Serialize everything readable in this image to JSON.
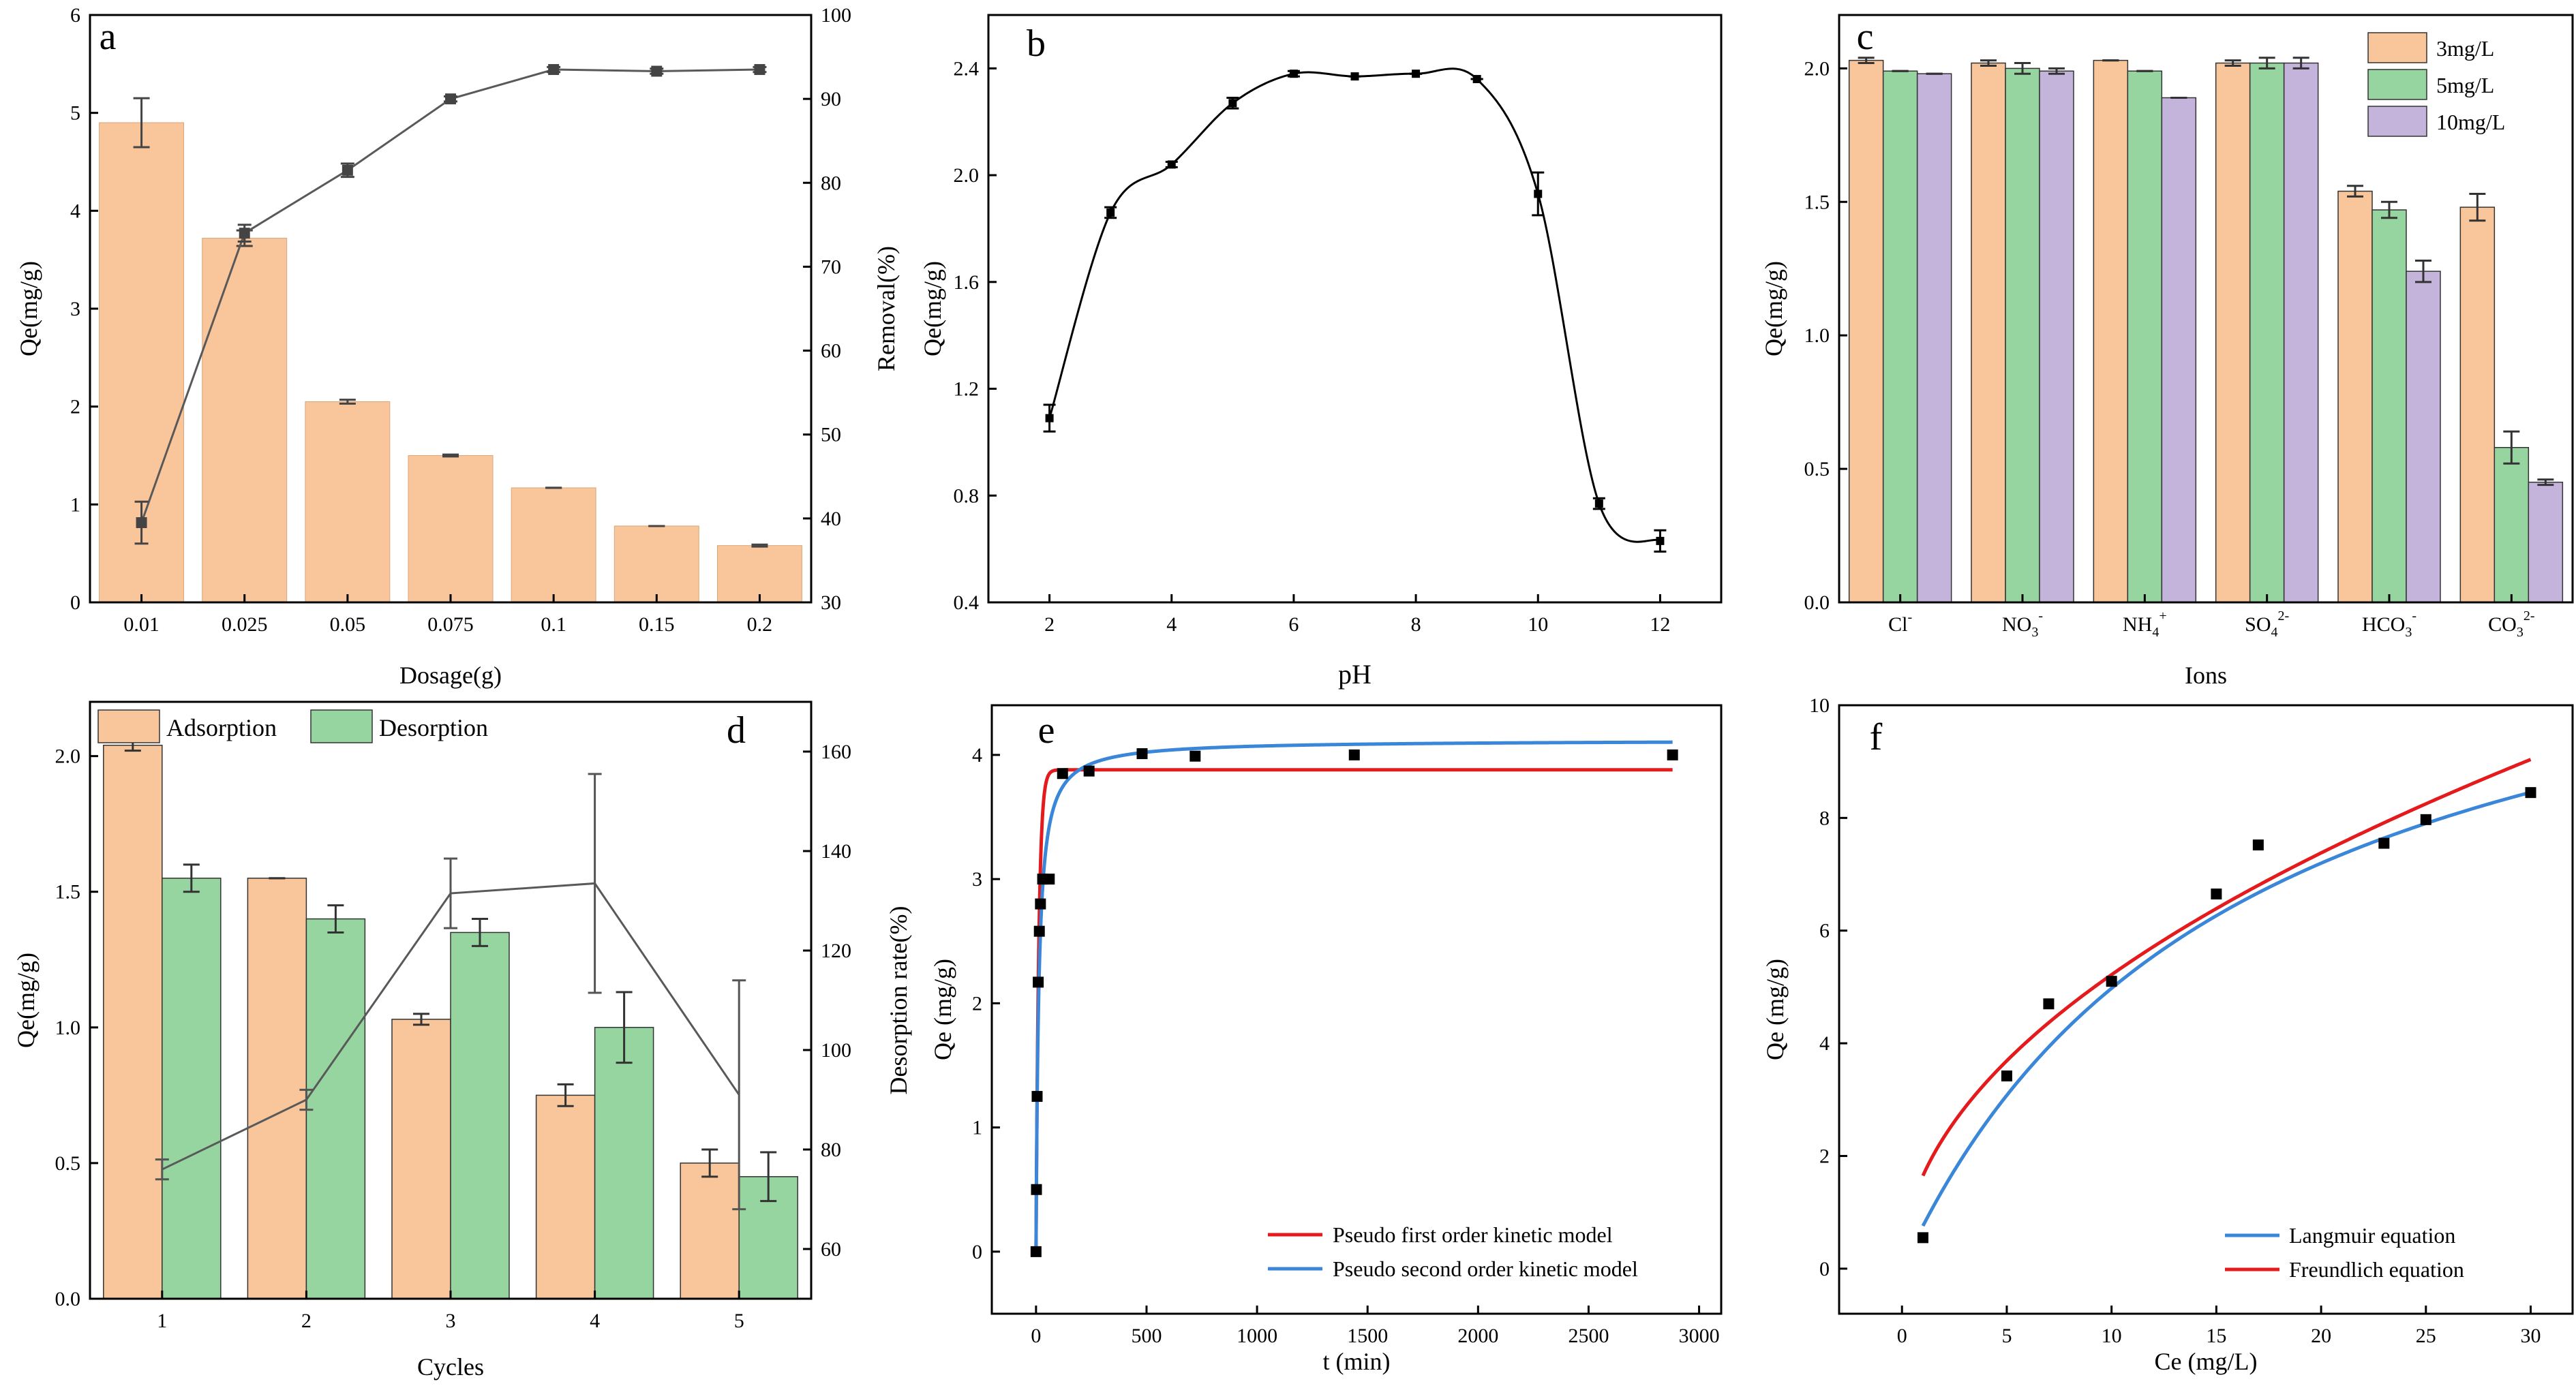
{
  "colors": {
    "orange": "#F9C59A",
    "green": "#96D4A0",
    "purple": "#C4B4DB",
    "line_gray": "#595959",
    "red": "#E41A1C",
    "blue": "#3A86D8",
    "black": "#000000"
  },
  "chart_data": [
    {
      "id": "a",
      "panel_label": "a",
      "type": "bar",
      "xlabel": "Dosage(g)",
      "ylabel": "Qe(mg/g)",
      "y2label": "Removal(%)",
      "categories": [
        "0.01",
        "0.025",
        "0.05",
        "0.075",
        "0.1",
        "0.15",
        "0.2"
      ],
      "ylim": [
        0,
        6
      ],
      "yticks": [
        "0",
        "1",
        "2",
        "3",
        "4",
        "5",
        "6"
      ],
      "y2lim": [
        30,
        100
      ],
      "y2ticks": [
        "30",
        "40",
        "50",
        "60",
        "70",
        "80",
        "90",
        "100"
      ],
      "series": [
        {
          "name": "Qe",
          "axis": "left",
          "kind": "bar",
          "values": [
            4.9,
            3.72,
            2.05,
            1.5,
            1.17,
            0.78,
            0.58
          ],
          "errors": [
            0.25,
            0.08,
            0.02,
            0.01,
            0.0,
            0.0,
            0.01
          ]
        },
        {
          "name": "Removal",
          "axis": "right",
          "kind": "line",
          "marker": "square",
          "values": [
            39.5,
            74,
            81.5,
            90,
            93.5,
            93.3,
            93.5
          ],
          "errors": [
            2.5,
            1,
            0.8,
            0.3,
            0.3,
            0.3,
            0.3
          ]
        }
      ]
    },
    {
      "id": "b",
      "panel_label": "b",
      "type": "line",
      "xlabel": "pH",
      "ylabel": "Qe(mg/g)",
      "xlim": [
        1,
        13
      ],
      "xticks": [
        "2",
        "4",
        "6",
        "8",
        "10",
        "12"
      ],
      "ylim": [
        0.4,
        2.6
      ],
      "yticks": [
        "0.4",
        "0.8",
        "1.2",
        "1.6",
        "2.0",
        "2.4"
      ],
      "series": [
        {
          "name": "Qe",
          "x": [
            2,
            3,
            4,
            5,
            6,
            7,
            8,
            9,
            10,
            11,
            12
          ],
          "values": [
            1.09,
            1.86,
            2.04,
            2.27,
            2.38,
            2.37,
            2.38,
            2.36,
            1.93,
            0.77,
            0.63
          ],
          "errors": [
            0.05,
            0.02,
            0.01,
            0.02,
            0.01,
            0.0,
            0.0,
            0.0,
            0.08,
            0.02,
            0.04
          ]
        }
      ]
    },
    {
      "id": "c",
      "panel_label": "c",
      "type": "bar",
      "xlabel": "Ions",
      "ylabel": "Qe(mg/g)",
      "categories": [
        {
          "base": "Cl",
          "sub": "",
          "sup": "-"
        },
        {
          "base": "NO",
          "sub": "3",
          "sup": "-"
        },
        {
          "base": "NH",
          "sub": "4",
          "sup": "+"
        },
        {
          "base": "SO",
          "sub": "4",
          "sup": "2-"
        },
        {
          "base": "HCO",
          "sub": "3",
          "sup": "-"
        },
        {
          "base": "CO",
          "sub": "3",
          "sup": "2-"
        }
      ],
      "ylim": [
        0,
        2.2
      ],
      "yticks": [
        "0.0",
        "0.5",
        "1.0",
        "1.5",
        "2.0"
      ],
      "legend_position": "top-right",
      "series": [
        {
          "name": "3mg/L",
          "color": "orange",
          "values": [
            2.03,
            2.02,
            2.03,
            2.02,
            1.54,
            1.48
          ],
          "errors": [
            0.01,
            0.01,
            0.0,
            0.01,
            0.02,
            0.05
          ]
        },
        {
          "name": "5mg/L",
          "color": "green",
          "values": [
            1.99,
            2.0,
            1.99,
            2.02,
            1.47,
            0.58
          ],
          "errors": [
            0.0,
            0.02,
            0.0,
            0.02,
            0.03,
            0.06
          ]
        },
        {
          "name": "10mg/L",
          "color": "purple",
          "values": [
            1.98,
            1.99,
            1.89,
            2.02,
            1.24,
            0.45
          ],
          "errors": [
            0.0,
            0.01,
            0.0,
            0.02,
            0.04,
            0.01
          ]
        }
      ]
    },
    {
      "id": "d",
      "panel_label": "d",
      "type": "bar",
      "xlabel": "Cycles",
      "ylabel": "Qe(mg/g)",
      "y2label": "Desorption rate(%)",
      "categories": [
        "1",
        "2",
        "3",
        "4",
        "5"
      ],
      "ylim": [
        0,
        2.2
      ],
      "yticks": [
        "0.0",
        "0.5",
        "1.0",
        "1.5",
        "2.0"
      ],
      "y2lim": [
        50,
        170
      ],
      "y2ticks": [
        "60",
        "80",
        "100",
        "120",
        "140",
        "160"
      ],
      "legend_position": "top-left",
      "series": [
        {
          "name": "Adsorption",
          "color": "orange",
          "axis": "left",
          "kind": "bar",
          "values": [
            2.04,
            1.55,
            1.03,
            0.75,
            0.5
          ],
          "errors": [
            0.02,
            0.0,
            0.02,
            0.04,
            0.05
          ]
        },
        {
          "name": "Desorption",
          "color": "green",
          "axis": "left",
          "kind": "bar",
          "values": [
            1.55,
            1.4,
            1.35,
            1.0,
            0.45
          ],
          "errors": [
            0.05,
            0.05,
            0.05,
            0.13,
            0.09
          ]
        },
        {
          "name": "Desorption rate",
          "axis": "right",
          "kind": "line",
          "values": [
            76,
            90,
            131.5,
            133.5,
            91
          ],
          "errors": [
            2,
            2,
            7,
            22,
            23
          ]
        }
      ]
    },
    {
      "id": "e",
      "panel_label": "e",
      "type": "scatter",
      "xlabel": "t (min)",
      "ylabel": "Qe (mg/g)",
      "xlim": [
        -200,
        3100
      ],
      "xticks": [
        "0",
        "500",
        "1000",
        "1500",
        "2000",
        "2500",
        "3000"
      ],
      "ylim": [
        -0.5,
        4.4
      ],
      "yticks": [
        "0",
        "1",
        "2",
        "3",
        "4"
      ],
      "legend_position": "bottom-right",
      "points": {
        "x": [
          0,
          2,
          5,
          10,
          15,
          20,
          30,
          60,
          120,
          240,
          480,
          720,
          1440,
          2880
        ],
        "y": [
          0,
          0.5,
          1.25,
          2.17,
          2.58,
          2.8,
          3.0,
          3.0,
          3.85,
          3.87,
          4.01,
          3.99,
          4.0,
          4.0
        ]
      },
      "series": [
        {
          "name": "Pseudo first order kinetic model",
          "color": "red",
          "model": "pfo",
          "qe": 3.88,
          "k": 0.08
        },
        {
          "name": "Pseudo second order kinetic model",
          "color": "blue",
          "model": "pso",
          "qe": 4.12,
          "k": 0.02
        }
      ]
    },
    {
      "id": "f",
      "panel_label": "f",
      "type": "scatter",
      "xlabel": "Ce (mg/L)",
      "ylabel": "Qe (mg/g)",
      "xlim": [
        -3,
        32
      ],
      "xticks": [
        "0",
        "5",
        "10",
        "15",
        "20",
        "25",
        "30"
      ],
      "ylim": [
        -0.8,
        10
      ],
      "yticks": [
        "0",
        "2",
        "4",
        "6",
        "8",
        "10"
      ],
      "legend_position": "bottom-right",
      "points": {
        "x": [
          1,
          5,
          7,
          10,
          15,
          17,
          23,
          25,
          30
        ],
        "y": [
          0.55,
          3.42,
          4.7,
          5.1,
          6.65,
          7.52,
          7.55,
          7.97,
          8.45
        ]
      },
      "series": [
        {
          "name": "Langmuir equation",
          "color": "blue",
          "model": "langmuir",
          "qm": 13.0,
          "kl": 0.062
        },
        {
          "name": "Freundlich equation",
          "color": "red",
          "model": "freundlich",
          "kf": 1.65,
          "n": 2.0
        }
      ]
    }
  ]
}
